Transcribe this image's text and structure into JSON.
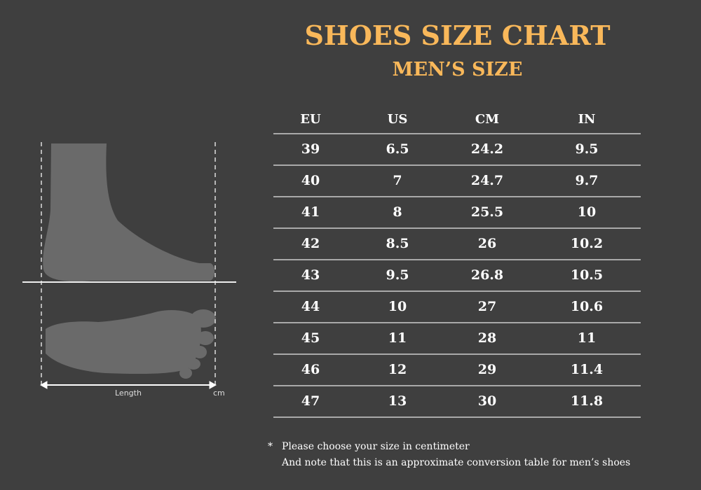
{
  "title": "SHOES SIZE CHART",
  "subtitle": "MEN’S SIZE",
  "colors": {
    "background": "#3f3f3f",
    "accent": "#f9b85a",
    "foot": "#6a6a6a"
  },
  "diagram": {
    "length_label": "Length",
    "unit_label": "cm"
  },
  "table": {
    "headers": [
      "EU",
      "US",
      "CM",
      "IN"
    ],
    "rows": [
      [
        "39",
        "6.5",
        "24.2",
        "9.5"
      ],
      [
        "40",
        "7",
        "24.7",
        "9.7"
      ],
      [
        "41",
        "8",
        "25.5",
        "10"
      ],
      [
        "42",
        "8.5",
        "26",
        "10.2"
      ],
      [
        "43",
        "9.5",
        "26.8",
        "10.5"
      ],
      [
        "44",
        "10",
        "27",
        "10.6"
      ],
      [
        "45",
        "11",
        "28",
        "11"
      ],
      [
        "46",
        "12",
        "29",
        "11.4"
      ],
      [
        "47",
        "13",
        "30",
        "11.8"
      ]
    ]
  },
  "footnote": {
    "marker": "*",
    "line1": "Please choose your size in centimeter",
    "line2": "And note that this is an approximate conversion table for men’s shoes"
  }
}
